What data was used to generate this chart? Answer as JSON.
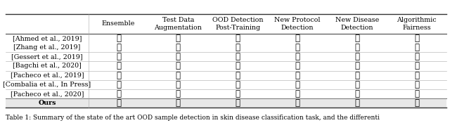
{
  "columns": [
    "Ensemble",
    "Test Data\nAugmentation",
    "OOD Detection\nPost-Training",
    "New Protocol\nDetection",
    "New Disease\nDetection",
    "Algorithmic\nFairness"
  ],
  "rows": [
    "[Ahmed et al., 2019]",
    "[Zhang et al., 2019]",
    "[Gessert et al., 2019]",
    "[Bagchi et al., 2020]",
    "[Pacheco et al., 2019]",
    "[Combalia et al., In Press]",
    "[Pacheco et al., 2020]",
    "Ours"
  ],
  "data": [
    [
      1,
      1,
      0,
      0,
      1,
      0
    ],
    [
      1,
      0,
      0,
      0,
      1,
      0
    ],
    [
      1,
      1,
      0,
      0,
      1,
      0
    ],
    [
      0,
      0,
      0,
      0,
      1,
      0
    ],
    [
      1,
      0,
      1,
      0,
      1,
      0
    ],
    [
      0,
      1,
      1,
      0,
      1,
      0
    ],
    [
      0,
      0,
      1,
      1,
      1,
      0
    ],
    [
      0,
      0,
      1,
      1,
      1,
      1
    ]
  ],
  "caption": "Table 1: Summary of the state of the art OOD sample detection in skin disease classification task, and the differenti",
  "header_fontsize": 6.8,
  "cell_fontsize": 8.5,
  "row_fontsize": 6.8,
  "caption_fontsize": 6.5,
  "check_color": "#222222",
  "cross_color": "#222222",
  "line_color_heavy": "#333333",
  "line_color_light": "#aaaaaa",
  "ours_bg": "#e8e8e8"
}
